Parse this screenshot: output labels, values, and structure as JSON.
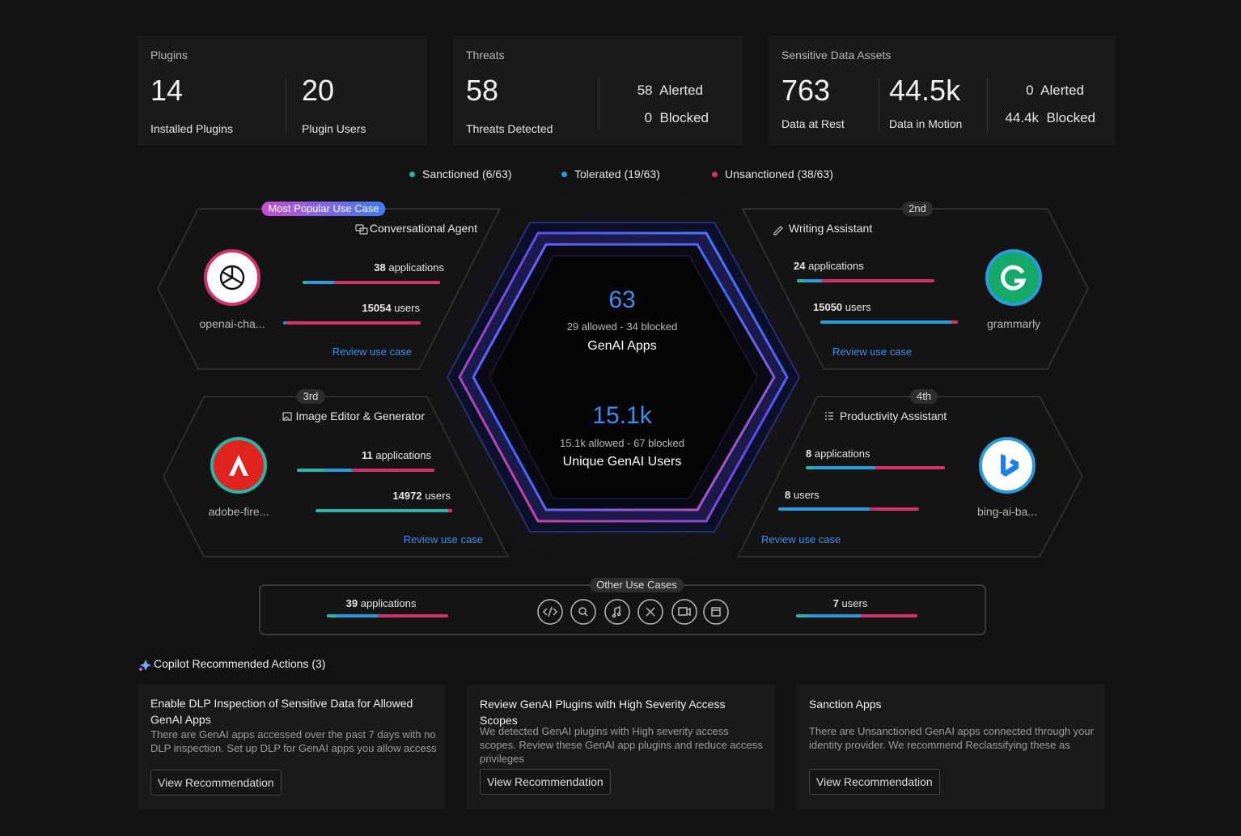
{
  "stats": [
    {
      "title": "Plugins",
      "items": [
        {
          "value": 14,
          "label": "Installed Plugins"
        },
        {
          "value": 20,
          "label": "Plugin Users"
        }
      ]
    },
    {
      "title": "Threats",
      "items": [
        {
          "value": 58,
          "label": "Threats Detected"
        }
      ],
      "side": [
        {
          "value": 58,
          "label": "Alerted"
        },
        {
          "value": 0,
          "label": "Blocked"
        }
      ]
    },
    {
      "title": "Sensitive Data Assets",
      "items": [
        {
          "value": 763,
          "label": "Data at Rest"
        },
        {
          "value": "44.5k",
          "label": "Data in Motion"
        }
      ],
      "side": [
        {
          "value": 0,
          "label": "Alerted"
        },
        {
          "value": "44.4k",
          "label": "Blocked"
        }
      ]
    }
  ],
  "legend": [
    {
      "label": "Sanctioned (6/63)",
      "color": "#2bb5a4"
    },
    {
      "label": "Tolerated (19/63)",
      "color": "#2a9bd8"
    },
    {
      "label": "Unsanctioned (38/63)",
      "color": "#d3336d"
    }
  ],
  "center": {
    "apps": {
      "value": 63,
      "detail": "29 allowed - 34 blocked",
      "label": "GenAI Apps"
    },
    "users": {
      "value": "15.1k",
      "detail": "15.1k allowed - 67 blocked",
      "label": "Unique GenAI Users"
    }
  },
  "use_cases": [
    {
      "badge": "Most Popular Use Case",
      "title": "Conversational Agent",
      "app": "openai-cha...",
      "apps": 38,
      "apps_unit": "applications",
      "apps_split": [
        3,
        20,
        77
      ],
      "users": 15054,
      "users_unit": "users",
      "users_split": [
        0,
        2,
        98
      ],
      "link": "Review use case"
    },
    {
      "badge": "2nd",
      "title": "Writing Assistant",
      "app": "grammarly",
      "apps": 24,
      "apps_unit": "applications",
      "apps_split": [
        5,
        13,
        82
      ],
      "users": 15050,
      "users_unit": "users",
      "users_split": [
        0,
        95,
        5
      ],
      "link": "Review use case"
    },
    {
      "badge": "3rd",
      "title": "Image Editor & Generator",
      "app": "adobe-fire...",
      "apps": 11,
      "apps_unit": "applications",
      "apps_split": [
        20,
        20,
        60
      ],
      "users": 14972,
      "users_unit": "users",
      "users_split": [
        97,
        0,
        3
      ],
      "link": "Review use case"
    },
    {
      "badge": "4th",
      "title": "Productivity Assistant",
      "app": "bing-ai-ba...",
      "apps": 8,
      "apps_unit": "applications",
      "apps_split": [
        5,
        45,
        50
      ],
      "users": 8,
      "users_unit": "users",
      "users_split": [
        0,
        65,
        35
      ],
      "link": "Review use case"
    }
  ],
  "other": {
    "title": "Other Use Cases",
    "apps": 39,
    "apps_unit": "applications",
    "apps_split": [
      7,
      35,
      58
    ],
    "users": 7,
    "users_unit": "users",
    "users_split": [
      8,
      45,
      47
    ]
  },
  "copilot": {
    "title": "Copilot Recommended Actions (3)",
    "cards": [
      {
        "title": "Enable DLP Inspection of Sensitive Data for Allowed GenAI Apps",
        "body": "There are GenAI apps accessed over the past 7 days with no DLP inspection. Set up DLP for GenAI apps you allow access",
        "button": "View Recommendation"
      },
      {
        "title": "Review GenAI Plugins with High Severity Access Scopes",
        "body": "We detected GenAI plugins with High severity access scopes. Review these GenAI app plugins and reduce access privileges",
        "button": "View Recommendation"
      },
      {
        "title": "Sanction Apps",
        "body": "There are Unsanctioned GenAI apps connected through your identity provider. We recommend Reclassifying these as",
        "button": "View Recommendation"
      }
    ]
  }
}
